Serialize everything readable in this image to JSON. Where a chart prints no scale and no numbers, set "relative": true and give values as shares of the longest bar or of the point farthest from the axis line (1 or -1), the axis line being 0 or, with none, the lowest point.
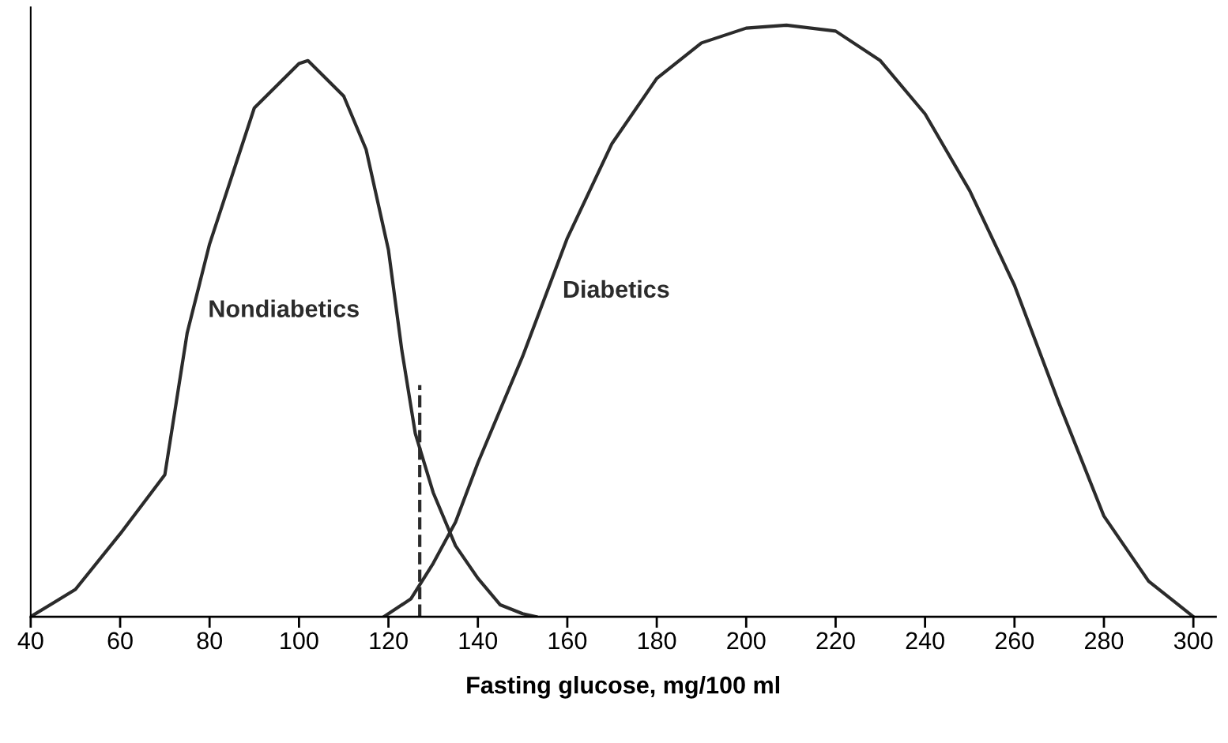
{
  "chart_data": {
    "type": "line",
    "relative": true,
    "xlabel": "Fasting glucose, mg/100 ml",
    "xlim": [
      40,
      305
    ],
    "xticks": [
      40,
      60,
      80,
      100,
      120,
      140,
      160,
      180,
      200,
      220,
      240,
      260,
      280,
      300
    ],
    "grid": false,
    "legend": false,
    "marker": "none",
    "line_style": "solid",
    "series": [
      {
        "name": "Nondiabetics",
        "color": "#2b2b2b",
        "x": [
          40,
          50,
          60,
          70,
          75,
          80,
          90,
          100,
          102,
          110,
          115,
          120,
          123,
          126,
          130,
          135,
          140,
          145,
          150,
          153
        ],
        "values": [
          0,
          0.046,
          0.14,
          0.24,
          0.48,
          0.63,
          0.86,
          0.935,
          0.94,
          0.88,
          0.79,
          0.62,
          0.45,
          0.31,
          0.21,
          0.12,
          0.065,
          0.02,
          0.005,
          0
        ]
      },
      {
        "name": "Diabetics",
        "color": "#2b2b2b",
        "x": [
          119,
          125,
          130,
          135,
          140,
          150,
          160,
          170,
          180,
          190,
          200,
          209,
          220,
          230,
          240,
          250,
          260,
          270,
          280,
          290,
          300
        ],
        "values": [
          0,
          0.03,
          0.09,
          0.16,
          0.26,
          0.44,
          0.64,
          0.8,
          0.91,
          0.97,
          0.995,
          1,
          0.99,
          0.94,
          0.85,
          0.72,
          0.56,
          0.36,
          0.17,
          0.06,
          0
        ]
      }
    ],
    "ref_lines": [
      {
        "axis": "x",
        "value": 127,
        "color": "#2b2b2b",
        "line_style": "dashed"
      }
    ]
  }
}
